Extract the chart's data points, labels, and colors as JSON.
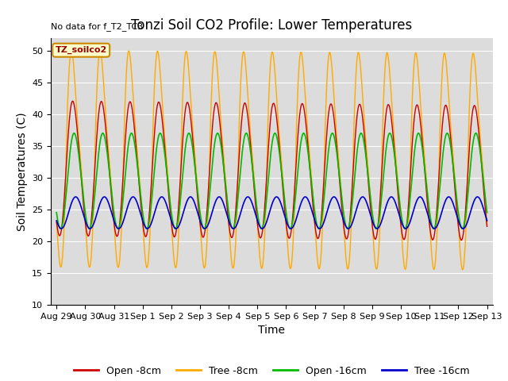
{
  "title": "Tonzi Soil CO2 Profile: Lower Temperatures",
  "no_data_text": "No data for f_T2_TC3",
  "box_label": "TZ_soilco2",
  "xlabel": "Time",
  "ylabel": "Soil Temperatures (C)",
  "ylim": [
    10,
    52
  ],
  "yticks": [
    10,
    15,
    20,
    25,
    30,
    35,
    40,
    45,
    50
  ],
  "x_labels": [
    "Aug 29",
    "Aug 30",
    "Aug 31",
    "Sep 1",
    "Sep 2",
    "Sep 3",
    "Sep 4",
    "Sep 5",
    "Sep 6",
    "Sep 7",
    "Sep 8",
    "Sep 9",
    "Sep 10",
    "Sep 11",
    "Sep 12",
    "Sep 13"
  ],
  "fig_bg": "#ffffff",
  "plot_bg": "#dcdcdc",
  "line_colors": {
    "open8": "#cc0000",
    "tree8": "#ffaa00",
    "open16": "#00bb00",
    "tree16": "#0000cc"
  },
  "legend_labels": [
    "Open -8cm",
    "Tree -8cm",
    "Open -16cm",
    "Tree -16cm"
  ],
  "title_fontsize": 12,
  "axis_label_fontsize": 10,
  "tick_fontsize": 8
}
